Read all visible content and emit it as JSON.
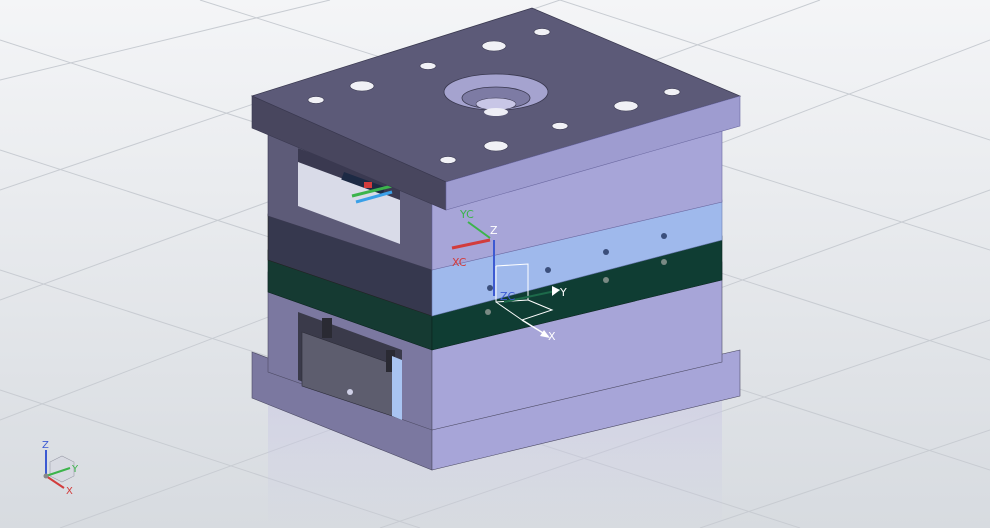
{
  "viewport": {
    "background_top": "#f4f5f7",
    "background_bottom": "#d7dbe0",
    "grid_color": "#c8ccd2"
  },
  "colors": {
    "plate_top": "#5c5a78",
    "plate_front": "#7b78a0",
    "plate_side": "#a7a5d8",
    "cavity_plate_front": "#36384e",
    "cavity_plate_side": "#9fb9ec",
    "core_plate_front": "#153a32",
    "core_plate_side": "#0f3d33",
    "hole_fill": "#f1f1f6",
    "axis_x": "#d23c3c",
    "axis_y": "#3cb44b",
    "axis_z": "#3c5ad2"
  },
  "wcs": {
    "xc_label": "XC",
    "yc_label": "YC",
    "zc_label": "ZC",
    "x_label": "X",
    "y_label": "Y",
    "z_label": "Z"
  },
  "view_triad": {
    "x_label": "X",
    "y_label": "Y",
    "z_label": "Z"
  }
}
